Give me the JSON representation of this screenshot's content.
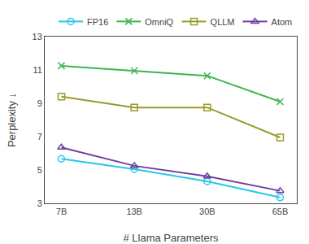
{
  "chart_data": {
    "type": "line",
    "categories": [
      "7B",
      "13B",
      "30B",
      "65B"
    ],
    "series": [
      {
        "name": "FP16",
        "color": "#29c7e8",
        "marker": "circle-open",
        "line_style": "solid",
        "values": [
          5.67,
          5.05,
          4.32,
          3.35
        ]
      },
      {
        "name": "OmniQ",
        "color": "#3cb552",
        "marker": "x",
        "line_style": "solid",
        "values": [
          11.25,
          10.95,
          10.65,
          9.1
        ]
      },
      {
        "name": "QLLM",
        "color": "#9a9a2a",
        "marker": "square-open",
        "line_style": "solid",
        "values": [
          9.4,
          8.75,
          8.75,
          6.95
        ]
      },
      {
        "name": "Atom",
        "color": "#7040a0",
        "marker": "triangle-up-open",
        "line_style": "solid",
        "values": [
          6.35,
          5.25,
          4.62,
          3.75
        ]
      }
    ],
    "xlabel": "# Llama Parameters",
    "ylabel": "Perplexity ↓",
    "ylim": [
      3,
      13
    ],
    "yticks": [
      3,
      5,
      7,
      9,
      11,
      13
    ],
    "legend": "upper right",
    "grid": false
  }
}
